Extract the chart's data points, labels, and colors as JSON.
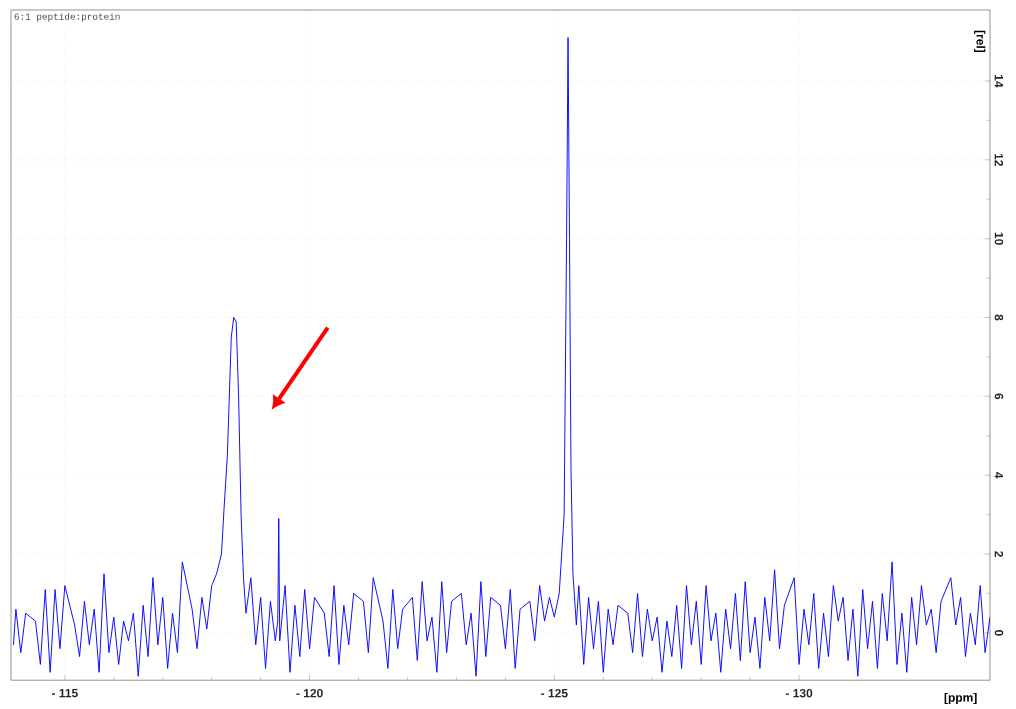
{
  "chart_data": {
    "type": "line",
    "xlabel": "[ppm]",
    "ylabel": "[rel]",
    "annotations": [
      "6:1 peptide:protein"
    ],
    "xlim": [
      -113.9,
      -133.9
    ],
    "ylim": [
      -1.2,
      15.8
    ],
    "xticks": [
      {
        "value": -115,
        "label": "- 115"
      },
      {
        "value": -120,
        "label": "- 120"
      },
      {
        "value": -125,
        "label": "- 125"
      },
      {
        "value": -130,
        "label": "- 130"
      }
    ],
    "yticks": [
      0,
      2,
      4,
      6,
      8,
      10,
      12,
      14
    ],
    "grid": true,
    "series": [
      {
        "color": "#0000ff",
        "x": [
          -113.95,
          -114.0,
          -114.1,
          -114.2,
          -114.3,
          -114.4,
          -114.5,
          -114.6,
          -114.7,
          -114.8,
          -114.9,
          -115.0,
          -115.1,
          -115.2,
          -115.3,
          -115.4,
          -115.5,
          -115.6,
          -115.7,
          -115.8,
          -115.9,
          -116.0,
          -116.1,
          -116.2,
          -116.3,
          -116.4,
          -116.5,
          -116.6,
          -116.7,
          -116.8,
          -116.9,
          -117.0,
          -117.1,
          -117.2,
          -117.3,
          -117.4,
          -117.5,
          -117.6,
          -117.7,
          -117.8,
          -117.9,
          -118.0,
          -118.1,
          -118.2,
          -118.25,
          -118.32,
          -118.4,
          -118.45,
          -118.5,
          -118.55,
          -118.6,
          -118.65,
          -118.7,
          -118.8,
          -118.9,
          -119.0,
          -119.1,
          -119.2,
          -119.3,
          -119.35,
          -119.37,
          -119.39,
          -119.5,
          -119.6,
          -119.7,
          -119.8,
          -119.9,
          -120.0,
          -120.1,
          -120.2,
          -120.3,
          -120.4,
          -120.5,
          -120.6,
          -120.7,
          -120.8,
          -120.9,
          -121.0,
          -121.1,
          -121.2,
          -121.3,
          -121.4,
          -121.5,
          -121.6,
          -121.7,
          -121.8,
          -121.9,
          -122.0,
          -122.1,
          -122.2,
          -122.3,
          -122.4,
          -122.5,
          -122.6,
          -122.7,
          -122.8,
          -122.9,
          -123.0,
          -123.1,
          -123.2,
          -123.3,
          -123.4,
          -123.5,
          -123.6,
          -123.7,
          -123.8,
          -123.9,
          -124.0,
          -124.1,
          -124.2,
          -124.3,
          -124.4,
          -124.5,
          -124.6,
          -124.7,
          -124.8,
          -124.9,
          -125.0,
          -125.1,
          -125.2,
          -125.25,
          -125.28,
          -125.31,
          -125.34,
          -125.38,
          -125.45,
          -125.5,
          -125.6,
          -125.7,
          -125.8,
          -125.9,
          -126.0,
          -126.1,
          -126.2,
          -126.3,
          -126.4,
          -126.5,
          -126.6,
          -126.7,
          -126.8,
          -126.9,
          -127.0,
          -127.1,
          -127.2,
          -127.3,
          -127.4,
          -127.5,
          -127.6,
          -127.7,
          -127.8,
          -127.9,
          -128.0,
          -128.1,
          -128.2,
          -128.3,
          -128.4,
          -128.5,
          -128.6,
          -128.7,
          -128.8,
          -128.9,
          -129.0,
          -129.1,
          -129.2,
          -129.3,
          -129.4,
          -129.5,
          -129.6,
          -129.7,
          -129.8,
          -129.9,
          -130.0,
          -130.1,
          -130.2,
          -130.3,
          -130.4,
          -130.5,
          -130.6,
          -130.7,
          -130.8,
          -130.9,
          -131.0,
          -131.1,
          -131.2,
          -131.3,
          -131.4,
          -131.5,
          -131.6,
          -131.7,
          -131.8,
          -131.9,
          -132.0,
          -132.1,
          -132.2,
          -132.3,
          -132.4,
          -132.5,
          -132.6,
          -132.7,
          -132.8,
          -132.9,
          -133.0,
          -133.1,
          -133.2,
          -133.3,
          -133.4,
          -133.5,
          -133.6,
          -133.7,
          -133.8,
          -133.9
        ],
        "values": [
          -0.3,
          0.6,
          -0.5,
          0.5,
          null,
          0.3,
          -0.8,
          1.1,
          -1.0,
          1.1,
          -0.4,
          1.2,
          null,
          0.2,
          -0.6,
          0.8,
          -0.3,
          0.6,
          -1.0,
          1.5,
          -0.5,
          0.4,
          -0.8,
          0.3,
          -0.2,
          0.5,
          -1.1,
          0.7,
          -0.6,
          1.4,
          -0.3,
          0.9,
          -0.9,
          0.5,
          -0.5,
          1.8,
          null,
          0.6,
          -0.4,
          0.9,
          0.1,
          1.2,
          1.5,
          2.0,
          3.1,
          4.5,
          7.5,
          8.0,
          7.9,
          6.0,
          3.0,
          1.4,
          0.5,
          1.4,
          -0.3,
          0.9,
          -0.9,
          0.8,
          -0.2,
          0.3,
          2.9,
          -0.2,
          1.2,
          -1.0,
          0.7,
          -0.6,
          1.1,
          -0.4,
          0.9,
          null,
          0.5,
          -0.6,
          1.2,
          -0.8,
          0.7,
          -0.3,
          1.0,
          null,
          0.8,
          -0.5,
          1.4,
          null,
          0.3,
          -0.9,
          1.1,
          -0.4,
          0.6,
          null,
          0.9,
          -0.7,
          1.3,
          -0.2,
          0.4,
          -1.0,
          1.3,
          -0.5,
          0.8,
          null,
          1.0,
          -0.3,
          0.5,
          -1.1,
          1.3,
          -0.6,
          0.9,
          null,
          0.7,
          -0.4,
          1.1,
          -0.9,
          0.6,
          null,
          0.8,
          -0.2,
          1.2,
          0.3,
          0.9,
          0.4,
          1.0,
          3.0,
          10.0,
          15.1,
          10.0,
          4.2,
          1.5,
          0.2,
          1.2,
          -0.8,
          0.9,
          -0.4,
          0.8,
          -1.0,
          0.6,
          -0.3,
          0.7,
          null,
          0.5,
          -0.5,
          1.0,
          -0.6,
          0.6,
          -0.2,
          0.4,
          -1.0,
          0.3,
          -0.6,
          0.7,
          -0.9,
          1.2,
          -0.3,
          0.8,
          -0.8,
          1.2,
          -0.2,
          0.5,
          -1.0,
          0.6,
          -0.4,
          1.0,
          -0.7,
          1.3,
          -0.5,
          0.4,
          -0.9,
          0.9,
          -0.2,
          1.6,
          -0.4,
          0.7,
          null,
          1.4,
          -0.8,
          0.6,
          -0.3,
          1.0,
          -0.9,
          0.5,
          -0.6,
          1.2,
          0.3,
          0.9,
          -0.7,
          0.6,
          -1.1,
          1.1,
          -0.4,
          0.8,
          -0.9,
          1.0,
          -0.2,
          1.8,
          -0.8,
          0.5,
          -1.0,
          0.9,
          -0.3,
          1.2,
          0.2,
          0.6,
          -0.5,
          0.8,
          null,
          1.4,
          0.2,
          0.9,
          -0.6,
          0.5,
          -0.3,
          1.2,
          -0.5,
          0.4
        ]
      }
    ]
  }
}
